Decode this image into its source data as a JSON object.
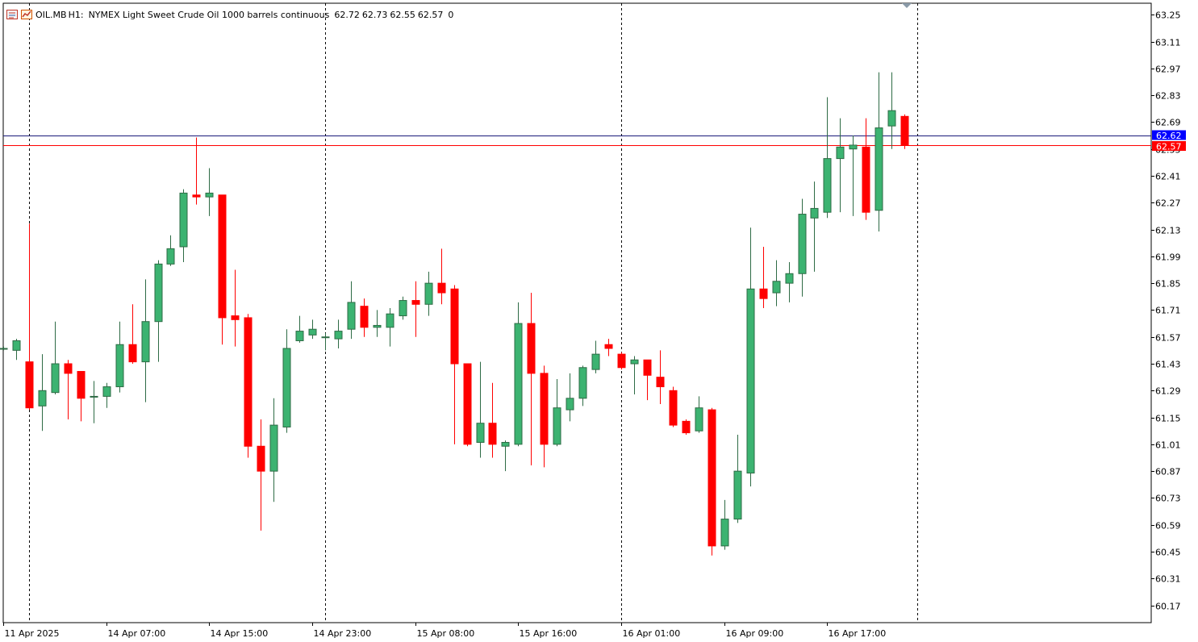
{
  "header": {
    "symbol": "OIL.MB",
    "timeframe": "H1:",
    "description": "NYMEX Light Sweet Crude Oil 1000 barrels continuous",
    "ohlc": [
      "62.72",
      "62.73",
      "62.55",
      "62.57"
    ],
    "volume": "0"
  },
  "colors": {
    "bull": "#3cb371",
    "bull_border": "#2e6b45",
    "bear": "#ff0000",
    "ask_line": "#1a1a7a",
    "bid_line": "#ff0000",
    "ask_tag": "#0000ff",
    "bid_tag": "#ff0000"
  },
  "price_tags": {
    "ask": "62.62",
    "bid": "62.57"
  },
  "chart_data": {
    "type": "candlestick",
    "y_ticks": [
      "63.25",
      "63.11",
      "62.97",
      "62.83",
      "62.69",
      "62.55",
      "62.41",
      "62.27",
      "62.13",
      "61.99",
      "61.85",
      "61.71",
      "61.57",
      "61.43",
      "61.29",
      "61.15",
      "61.01",
      "60.87",
      "60.73",
      "60.59",
      "60.45",
      "60.31",
      "60.17"
    ],
    "ylim": [
      60.08,
      63.31
    ],
    "x_labels": [
      "11 Apr 2025",
      "14 Apr 07:00",
      "14 Apr 15:00",
      "14 Apr 23:00",
      "15 Apr 08:00",
      "15 Apr 16:00",
      "16 Apr 01:00",
      "16 Apr 09:00",
      "16 Apr 17:00"
    ],
    "session_separators": [
      2,
      25,
      48,
      71
    ],
    "candles": [
      {
        "o": 61.51,
        "h": 61.52,
        "l": 61.5,
        "c": 61.51
      },
      {
        "o": 61.5,
        "h": 61.56,
        "l": 61.45,
        "c": 61.55
      },
      {
        "o": 61.44,
        "h": 62.16,
        "l": 61.19,
        "c": 61.2
      },
      {
        "o": 61.21,
        "h": 61.48,
        "l": 61.08,
        "c": 61.29
      },
      {
        "o": 61.28,
        "h": 61.65,
        "l": 61.27,
        "c": 61.43
      },
      {
        "o": 61.43,
        "h": 61.45,
        "l": 61.14,
        "c": 61.38
      },
      {
        "o": 61.39,
        "h": 61.39,
        "l": 61.13,
        "c": 61.25
      },
      {
        "o": 61.26,
        "h": 61.34,
        "l": 61.12,
        "c": 61.26
      },
      {
        "o": 61.26,
        "h": 61.33,
        "l": 61.2,
        "c": 61.31
      },
      {
        "o": 61.31,
        "h": 61.65,
        "l": 61.28,
        "c": 61.53
      },
      {
        "o": 61.53,
        "h": 61.74,
        "l": 61.43,
        "c": 61.44
      },
      {
        "o": 61.44,
        "h": 61.87,
        "l": 61.23,
        "c": 61.65
      },
      {
        "o": 61.65,
        "h": 61.97,
        "l": 61.44,
        "c": 61.95
      },
      {
        "o": 61.95,
        "h": 62.1,
        "l": 61.94,
        "c": 62.03
      },
      {
        "o": 62.04,
        "h": 62.34,
        "l": 61.96,
        "c": 62.32
      },
      {
        "o": 62.31,
        "h": 62.61,
        "l": 62.26,
        "c": 62.3
      },
      {
        "o": 62.3,
        "h": 62.45,
        "l": 62.2,
        "c": 62.32
      },
      {
        "o": 62.31,
        "h": 62.31,
        "l": 61.53,
        "c": 61.67
      },
      {
        "o": 61.68,
        "h": 61.92,
        "l": 61.52,
        "c": 61.66
      },
      {
        "o": 61.67,
        "h": 61.69,
        "l": 60.94,
        "c": 61.0
      },
      {
        "o": 61.0,
        "h": 61.14,
        "l": 60.56,
        "c": 60.87
      },
      {
        "o": 60.87,
        "h": 61.25,
        "l": 60.71,
        "c": 61.11
      },
      {
        "o": 61.1,
        "h": 61.61,
        "l": 61.07,
        "c": 61.51
      },
      {
        "o": 61.55,
        "h": 61.68,
        "l": 61.54,
        "c": 61.6
      },
      {
        "o": 61.58,
        "h": 61.66,
        "l": 61.56,
        "c": 61.61
      },
      {
        "o": 61.57,
        "h": 61.59,
        "l": 61.5,
        "c": 61.57
      },
      {
        "o": 61.56,
        "h": 61.66,
        "l": 61.51,
        "c": 61.6
      },
      {
        "o": 61.61,
        "h": 61.86,
        "l": 61.56,
        "c": 61.75
      },
      {
        "o": 61.73,
        "h": 61.77,
        "l": 61.57,
        "c": 61.62
      },
      {
        "o": 61.62,
        "h": 61.71,
        "l": 61.57,
        "c": 61.63
      },
      {
        "o": 61.62,
        "h": 61.72,
        "l": 61.52,
        "c": 61.69
      },
      {
        "o": 61.68,
        "h": 61.78,
        "l": 61.66,
        "c": 61.76
      },
      {
        "o": 61.76,
        "h": 61.86,
        "l": 61.57,
        "c": 61.74
      },
      {
        "o": 61.74,
        "h": 61.91,
        "l": 61.68,
        "c": 61.85
      },
      {
        "o": 61.85,
        "h": 62.03,
        "l": 61.74,
        "c": 61.8
      },
      {
        "o": 61.82,
        "h": 61.84,
        "l": 61.01,
        "c": 61.43
      },
      {
        "o": 61.43,
        "h": 61.43,
        "l": 61.0,
        "c": 61.01
      },
      {
        "o": 61.02,
        "h": 61.44,
        "l": 60.94,
        "c": 61.12
      },
      {
        "o": 61.12,
        "h": 61.33,
        "l": 60.94,
        "c": 61.01
      },
      {
        "o": 61.0,
        "h": 61.03,
        "l": 60.87,
        "c": 61.02
      },
      {
        "o": 61.01,
        "h": 61.75,
        "l": 61.0,
        "c": 61.64
      },
      {
        "o": 61.64,
        "h": 61.8,
        "l": 60.9,
        "c": 61.38
      },
      {
        "o": 61.38,
        "h": 61.42,
        "l": 60.89,
        "c": 61.01
      },
      {
        "o": 61.01,
        "h": 61.35,
        "l": 61.0,
        "c": 61.2
      },
      {
        "o": 61.19,
        "h": 61.38,
        "l": 61.13,
        "c": 61.25
      },
      {
        "o": 61.25,
        "h": 61.42,
        "l": 61.21,
        "c": 61.41
      },
      {
        "o": 61.4,
        "h": 61.55,
        "l": 61.38,
        "c": 61.48
      },
      {
        "o": 61.53,
        "h": 61.56,
        "l": 61.47,
        "c": 61.51
      },
      {
        "o": 61.48,
        "h": 61.49,
        "l": 61.4,
        "c": 61.41
      },
      {
        "o": 61.43,
        "h": 61.47,
        "l": 61.27,
        "c": 61.45
      },
      {
        "o": 61.45,
        "h": 61.45,
        "l": 61.24,
        "c": 61.37
      },
      {
        "o": 61.36,
        "h": 61.5,
        "l": 61.22,
        "c": 61.31
      },
      {
        "o": 61.29,
        "h": 61.31,
        "l": 61.1,
        "c": 61.11
      },
      {
        "o": 61.13,
        "h": 61.14,
        "l": 61.06,
        "c": 61.07
      },
      {
        "o": 61.08,
        "h": 61.26,
        "l": 61.07,
        "c": 61.2
      },
      {
        "o": 61.19,
        "h": 61.2,
        "l": 60.43,
        "c": 60.48
      },
      {
        "o": 60.48,
        "h": 60.72,
        "l": 60.46,
        "c": 60.62
      },
      {
        "o": 60.62,
        "h": 61.06,
        "l": 60.6,
        "c": 60.87
      },
      {
        "o": 60.86,
        "h": 62.14,
        "l": 60.79,
        "c": 61.82
      },
      {
        "o": 61.82,
        "h": 62.04,
        "l": 61.72,
        "c": 61.77
      },
      {
        "o": 61.8,
        "h": 61.97,
        "l": 61.73,
        "c": 61.86
      },
      {
        "o": 61.85,
        "h": 61.96,
        "l": 61.75,
        "c": 61.9
      },
      {
        "o": 61.9,
        "h": 62.29,
        "l": 61.78,
        "c": 62.21
      },
      {
        "o": 62.19,
        "h": 62.38,
        "l": 61.91,
        "c": 62.24
      },
      {
        "o": 62.22,
        "h": 62.82,
        "l": 62.19,
        "c": 62.5
      },
      {
        "o": 62.5,
        "h": 62.71,
        "l": 62.22,
        "c": 62.56
      },
      {
        "o": 62.55,
        "h": 62.62,
        "l": 62.2,
        "c": 62.57
      },
      {
        "o": 62.56,
        "h": 62.71,
        "l": 62.18,
        "c": 62.22
      },
      {
        "o": 62.23,
        "h": 62.95,
        "l": 62.12,
        "c": 62.66
      },
      {
        "o": 62.67,
        "h": 62.95,
        "l": 62.55,
        "c": 62.75
      },
      {
        "o": 62.72,
        "h": 62.73,
        "l": 62.55,
        "c": 62.57
      }
    ]
  }
}
